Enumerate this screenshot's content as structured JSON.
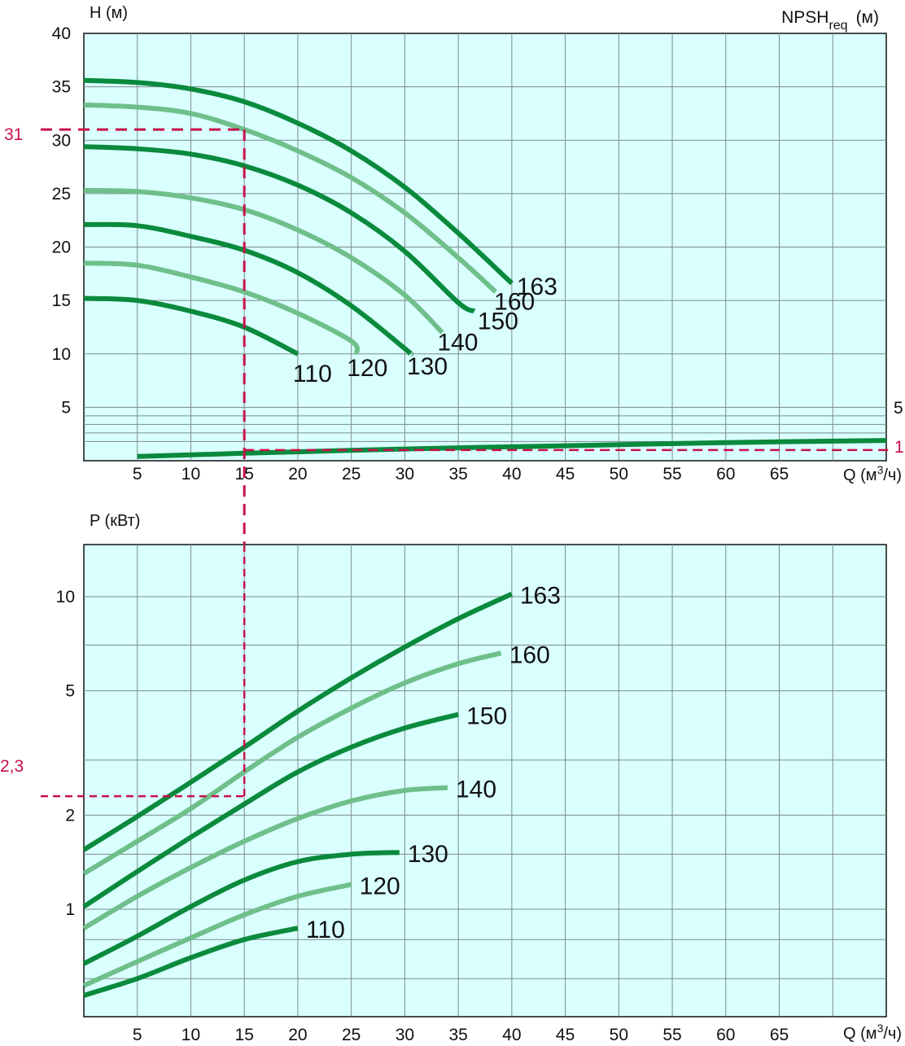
{
  "colors": {
    "plot_bg": "#d9ffff",
    "dark_green": "#0a8a3c",
    "light_green": "#6fbf8a",
    "reference": "#c8104a",
    "grid": "#7c8a8a"
  },
  "reference": {
    "q": 15,
    "h": 31,
    "npsh": 1,
    "p": 2.3,
    "h_label": "31",
    "npsh_label": "1",
    "p_label": "2,3"
  },
  "chart_data": [
    {
      "type": "line",
      "x_ticks": [
        "5",
        "10",
        "15",
        "20",
        "25",
        "30",
        "35",
        "40",
        "45",
        "50",
        "55",
        "60",
        "65"
      ],
      "y_ticks": [
        "5",
        "10",
        "15",
        "20",
        "25",
        "30",
        "35",
        "40"
      ],
      "y_right_ticks": [
        "5"
      ],
      "ylabel": "H (м)",
      "ylabel_right_main": "NPSH",
      "ylabel_right_sub": "req",
      "ylabel_right_unit": "(м)",
      "xlabel_main": "Q (м",
      "xlabel_sup": "3",
      "xlabel_end": "/ч)",
      "xlim": [
        0,
        75
      ],
      "ylim": [
        0,
        40
      ],
      "series": [
        {
          "name": "110",
          "shade": "dark",
          "points": [
            [
              0,
              15.2
            ],
            [
              5,
              15.0
            ],
            [
              10,
              14.0
            ],
            [
              15,
              12.5
            ],
            [
              20,
              10.0
            ]
          ]
        },
        {
          "name": "120",
          "shade": "light",
          "points": [
            [
              0,
              18.5
            ],
            [
              5,
              18.3
            ],
            [
              10,
              17.2
            ],
            [
              15,
              15.8
            ],
            [
              20,
              13.8
            ],
            [
              25,
              11.2
            ],
            [
              25.5,
              10.0
            ]
          ]
        },
        {
          "name": "130",
          "shade": "dark",
          "points": [
            [
              0,
              22.1
            ],
            [
              5,
              22.0
            ],
            [
              10,
              21.0
            ],
            [
              15,
              19.7
            ],
            [
              20,
              17.6
            ],
            [
              25,
              14.5
            ],
            [
              30,
              10.5
            ],
            [
              30.5,
              10.0
            ]
          ]
        },
        {
          "name": "140",
          "shade": "light",
          "points": [
            [
              0,
              25.3
            ],
            [
              5,
              25.2
            ],
            [
              10,
              24.6
            ],
            [
              15,
              23.5
            ],
            [
              20,
              21.6
            ],
            [
              25,
              19.0
            ],
            [
              30,
              15.5
            ],
            [
              33.5,
              12.0
            ]
          ]
        },
        {
          "name": "150",
          "shade": "dark",
          "points": [
            [
              0,
              29.4
            ],
            [
              5,
              29.2
            ],
            [
              10,
              28.7
            ],
            [
              15,
              27.6
            ],
            [
              20,
              25.8
            ],
            [
              25,
              23.2
            ],
            [
              30,
              19.6
            ],
            [
              35,
              14.8
            ],
            [
              36.5,
              14.0
            ]
          ]
        },
        {
          "name": "160",
          "shade": "light",
          "points": [
            [
              0,
              33.3
            ],
            [
              5,
              33.1
            ],
            [
              10,
              32.5
            ],
            [
              15,
              31.0
            ],
            [
              20,
              29.0
            ],
            [
              25,
              26.5
            ],
            [
              30,
              23.2
            ],
            [
              35,
              19.0
            ],
            [
              38.5,
              15.8
            ]
          ]
        },
        {
          "name": "163",
          "shade": "dark",
          "points": [
            [
              0,
              35.6
            ],
            [
              5,
              35.4
            ],
            [
              10,
              34.8
            ],
            [
              15,
              33.6
            ],
            [
              20,
              31.6
            ],
            [
              25,
              29.0
            ],
            [
              30,
              25.6
            ],
            [
              35,
              21.3
            ],
            [
              40,
              16.6
            ]
          ]
        },
        {
          "name": "NPSH",
          "shade": "dark",
          "points": [
            [
              5,
              0.4
            ],
            [
              15,
              0.7
            ],
            [
              30,
              1.1
            ],
            [
              45,
              1.4
            ],
            [
              60,
              1.7
            ],
            [
              75,
              1.9
            ]
          ]
        }
      ]
    },
    {
      "type": "line",
      "x_ticks": [
        "5",
        "10",
        "15",
        "20",
        "25",
        "30",
        "35",
        "40",
        "45",
        "50",
        "55",
        "60",
        "65"
      ],
      "y_ticks": [
        "1",
        "2",
        "5",
        "10"
      ],
      "ylabel": "P (кВт)",
      "xlabel_main": "Q (м",
      "xlabel_sup": "3",
      "xlabel_end": "/ч)",
      "xlim": [
        0,
        75
      ],
      "y_scale": "log",
      "series": [
        {
          "name": "110",
          "shade": "dark",
          "points": [
            [
              0,
              0.53
            ],
            [
              5,
              0.6
            ],
            [
              10,
              0.7
            ],
            [
              15,
              0.8
            ],
            [
              20,
              0.87
            ]
          ]
        },
        {
          "name": "120",
          "shade": "light",
          "points": [
            [
              0,
              0.57
            ],
            [
              5,
              0.68
            ],
            [
              10,
              0.81
            ],
            [
              15,
              0.96
            ],
            [
              20,
              1.1
            ],
            [
              25,
              1.2
            ]
          ]
        },
        {
          "name": "130",
          "shade": "dark",
          "points": [
            [
              0,
              0.67
            ],
            [
              5,
              0.82
            ],
            [
              10,
              1.02
            ],
            [
              15,
              1.24
            ],
            [
              20,
              1.42
            ],
            [
              25,
              1.5
            ],
            [
              29.5,
              1.52
            ]
          ]
        },
        {
          "name": "140",
          "shade": "light",
          "points": [
            [
              0,
              0.87
            ],
            [
              5,
              1.1
            ],
            [
              10,
              1.36
            ],
            [
              15,
              1.65
            ],
            [
              20,
              1.95
            ],
            [
              25,
              2.22
            ],
            [
              30,
              2.4
            ],
            [
              34,
              2.45
            ]
          ]
        },
        {
          "name": "150",
          "shade": "dark",
          "points": [
            [
              0,
              1.02
            ],
            [
              5,
              1.32
            ],
            [
              10,
              1.7
            ],
            [
              15,
              2.17
            ],
            [
              20,
              2.75
            ],
            [
              25,
              3.3
            ],
            [
              30,
              3.8
            ],
            [
              35,
              4.2
            ]
          ]
        },
        {
          "name": "160",
          "shade": "light",
          "points": [
            [
              0,
              1.3
            ],
            [
              5,
              1.65
            ],
            [
              10,
              2.1
            ],
            [
              15,
              2.75
            ],
            [
              20,
              3.55
            ],
            [
              25,
              4.4
            ],
            [
              30,
              5.3
            ],
            [
              35,
              6.1
            ],
            [
              39,
              6.6
            ]
          ]
        },
        {
          "name": "163",
          "shade": "dark",
          "points": [
            [
              0,
              1.55
            ],
            [
              5,
              1.98
            ],
            [
              10,
              2.55
            ],
            [
              15,
              3.3
            ],
            [
              20,
              4.3
            ],
            [
              25,
              5.5
            ],
            [
              30,
              6.9
            ],
            [
              35,
              8.5
            ],
            [
              40,
              10.2
            ]
          ]
        }
      ]
    }
  ]
}
